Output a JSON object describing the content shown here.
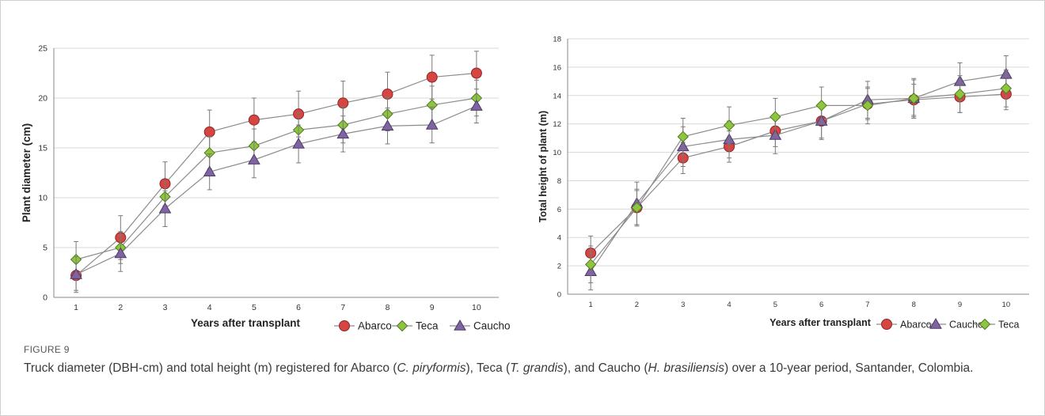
{
  "colors": {
    "abarco": "#d64541",
    "teca": "#8cc63f",
    "caucho": "#8064a2",
    "line": "#8c8c8c",
    "grid": "#d9d9d9",
    "errorbar": "#7a7a7a"
  },
  "chart_data": [
    {
      "type": "line",
      "title": "",
      "xlabel": "Years after transplant",
      "ylabel": "Plant diameter (cm)",
      "x": [
        1,
        2,
        3,
        4,
        5,
        6,
        7,
        8,
        9,
        10
      ],
      "xlim": [
        1,
        10
      ],
      "ylim": [
        0,
        25
      ],
      "yticks": [
        0,
        5,
        10,
        15,
        20,
        25
      ],
      "grid": "horizontal",
      "legend": "bottom-right",
      "series": [
        {
          "name": "Abarco",
          "marker": "circle",
          "color": "#d64541",
          "values": [
            2.2,
            6.0,
            11.4,
            16.6,
            17.8,
            18.4,
            19.5,
            20.4,
            22.1,
            22.5
          ],
          "err": [
            1.5,
            2.2,
            2.2,
            2.2,
            2.2,
            2.3,
            2.2,
            2.2,
            2.2,
            2.2
          ]
        },
        {
          "name": "Teca",
          "marker": "diamond",
          "color": "#8cc63f",
          "values": [
            3.8,
            5.0,
            10.1,
            14.5,
            15.2,
            16.8,
            17.3,
            18.4,
            19.3,
            20.0
          ],
          "err": [
            1.8,
            1.6,
            1.5,
            1.6,
            1.7,
            1.7,
            1.8,
            1.7,
            1.9,
            1.8
          ]
        },
        {
          "name": "Caucho",
          "marker": "triangle",
          "color": "#8064a2",
          "values": [
            2.3,
            4.4,
            8.9,
            12.6,
            13.8,
            15.4,
            16.4,
            17.2,
            17.3,
            19.2
          ],
          "err": [
            1.8,
            1.8,
            1.8,
            1.8,
            1.8,
            1.9,
            1.8,
            1.8,
            1.8,
            1.7
          ]
        }
      ]
    },
    {
      "type": "line",
      "title": "",
      "xlabel": "Years after transplant",
      "ylabel": "Total height of plant (m)",
      "x": [
        1,
        2,
        3,
        4,
        5,
        6,
        7,
        8,
        9,
        10
      ],
      "xlim": [
        1,
        10
      ],
      "ylim": [
        0,
        18
      ],
      "yticks": [
        0,
        2,
        4,
        6,
        8,
        10,
        12,
        14,
        16,
        18
      ],
      "grid": "horizontal",
      "legend": "bottom-right",
      "series": [
        {
          "name": "Abarco",
          "marker": "circle",
          "color": "#d64541",
          "values": [
            2.9,
            6.1,
            9.6,
            10.4,
            11.5,
            12.2,
            13.4,
            13.7,
            13.9,
            14.1
          ],
          "err": [
            1.2,
            1.2,
            1.1,
            1.1,
            1.1,
            1.2,
            1.1,
            1.1,
            1.1,
            1.1
          ]
        },
        {
          "name": "Caucho",
          "marker": "triangle",
          "color": "#8064a2",
          "values": [
            1.6,
            6.4,
            10.4,
            10.9,
            11.2,
            12.2,
            13.7,
            13.8,
            15.0,
            15.5
          ],
          "err": [
            1.3,
            1.5,
            1.4,
            1.3,
            1.3,
            1.3,
            1.3,
            1.4,
            1.3,
            1.3
          ]
        },
        {
          "name": "Teca",
          "marker": "diamond",
          "color": "#8cc63f",
          "values": [
            2.1,
            6.1,
            11.1,
            11.9,
            12.5,
            13.3,
            13.3,
            13.8,
            14.1,
            14.5
          ],
          "err": [
            1.3,
            1.3,
            1.3,
            1.3,
            1.3,
            1.3,
            1.3,
            1.3,
            1.3,
            1.3
          ]
        }
      ]
    }
  ],
  "caption": {
    "label": "FIGURE 9",
    "parts": [
      "Truck diameter (DBH-cm) and total height (m) registered for Abarco (",
      "C. piryformis",
      "), Teca (",
      "T. grandis",
      "), and Caucho (",
      "H. brasiliensis",
      ") over a 10-year period, Santander, Colombia."
    ]
  }
}
